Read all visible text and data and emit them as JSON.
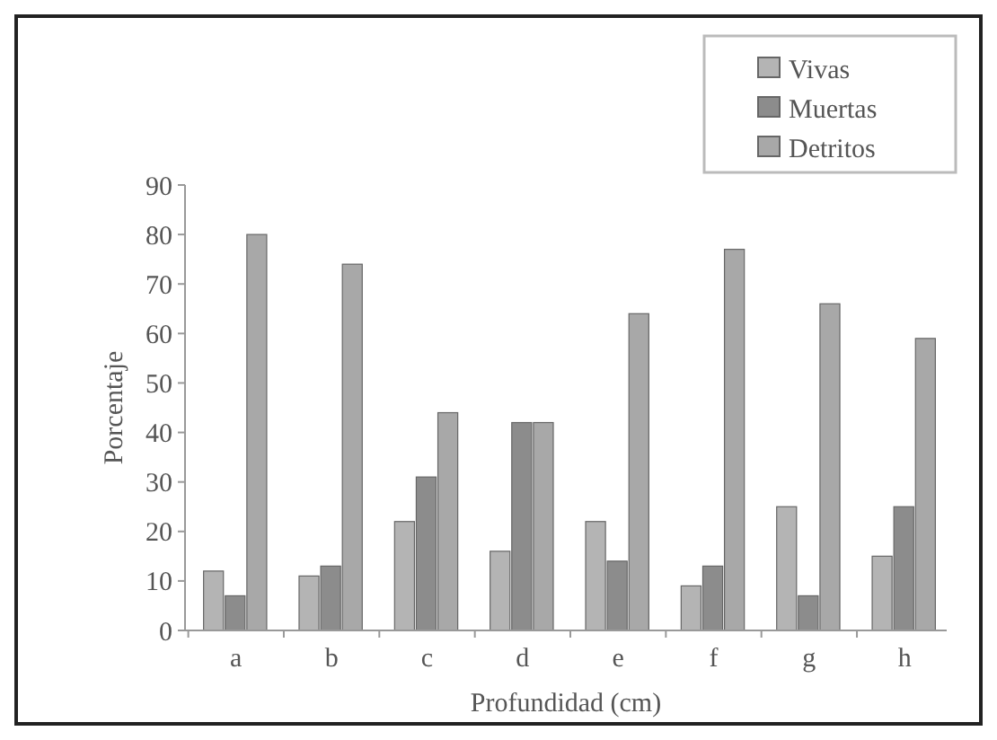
{
  "chart_data": {
    "type": "bar",
    "xlabel": "Profundidad (cm)",
    "ylabel": "Porcentaje",
    "categories": [
      "a",
      "b",
      "c",
      "d",
      "e",
      "f",
      "g",
      "h"
    ],
    "series": [
      {
        "name": "Vivas",
        "color": "#b4b4b4",
        "values": [
          12,
          11,
          22,
          16,
          22,
          9,
          25,
          15
        ]
      },
      {
        "name": "Muertas",
        "color": "#8c8c8c",
        "values": [
          7,
          13,
          31,
          42,
          14,
          13,
          7,
          25
        ]
      },
      {
        "name": "Detritos",
        "color": "#a8a8a8",
        "values": [
          80,
          74,
          44,
          42,
          64,
          77,
          66,
          59
        ]
      }
    ],
    "ylim": [
      0,
      90
    ],
    "yticks": [
      0,
      10,
      20,
      30,
      40,
      50,
      60,
      70,
      80,
      90
    ],
    "legend": "top right"
  }
}
